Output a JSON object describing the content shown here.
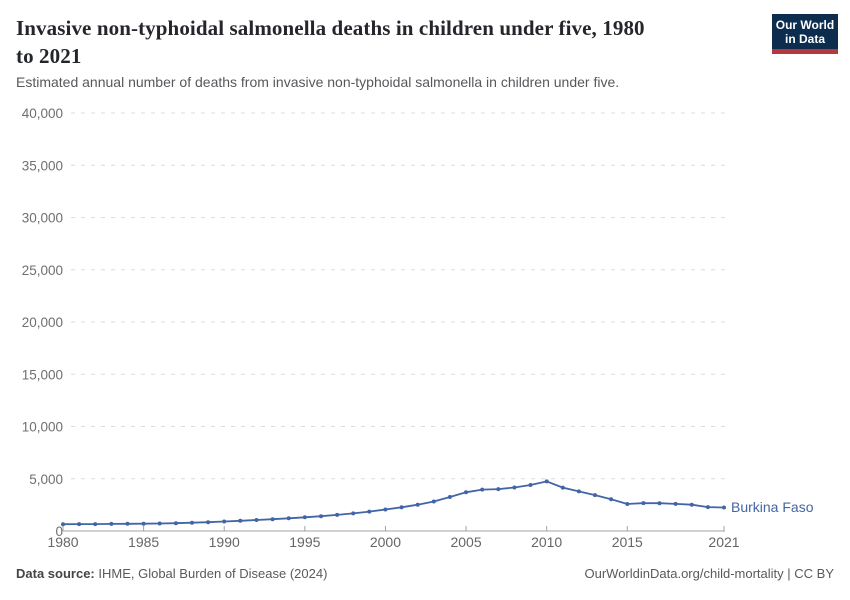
{
  "header": {
    "title": "Invasive non-typhoidal salmonella deaths in children under five, 1980 to 2021",
    "title_line1": "Invasive non-typhoidal salmonella deaths in children under five, 1980",
    "title_line2": "to 2021",
    "subtitle": "Estimated annual number of deaths from invasive non-typhoidal salmonella in children under five."
  },
  "logo": {
    "line1": "Our World",
    "line2": "in Data",
    "bg_color": "#0c2d4e",
    "stripe_color": "#b5383f"
  },
  "chart_data": {
    "type": "line",
    "title": "Invasive non-typhoidal salmonella deaths in children under five, 1980 to 2021",
    "xlabel": "",
    "ylabel": "",
    "ylim": [
      0,
      40000
    ],
    "yticks": [
      0,
      5000,
      10000,
      15000,
      20000,
      25000,
      30000,
      35000,
      40000
    ],
    "ytick_interval": 5000,
    "xticks": [
      1980,
      1985,
      1990,
      1995,
      2000,
      2005,
      2010,
      2015,
      2021
    ],
    "grid": "dashed-horizontal",
    "legend_position": "series-end-label",
    "series": [
      {
        "name": "Burkina Faso",
        "color": "#4365a5",
        "x": [
          1980,
          1981,
          1982,
          1983,
          1984,
          1985,
          1986,
          1987,
          1988,
          1989,
          1990,
          1991,
          1992,
          1993,
          1994,
          1995,
          1996,
          1997,
          1998,
          1999,
          2000,
          2001,
          2002,
          2003,
          2004,
          2005,
          2006,
          2007,
          2008,
          2009,
          2010,
          2011,
          2012,
          2013,
          2014,
          2015,
          2016,
          2017,
          2018,
          2019,
          2020,
          2021
        ],
        "values": [
          650,
          660,
          665,
          675,
          685,
          700,
          720,
          750,
          790,
          845,
          905,
          975,
          1050,
          1130,
          1215,
          1310,
          1420,
          1540,
          1680,
          1860,
          2060,
          2270,
          2520,
          2820,
          3250,
          3700,
          3960,
          4010,
          4160,
          4400,
          4750,
          4150,
          3790,
          3440,
          3040,
          2580,
          2670,
          2665,
          2590,
          2520,
          2290,
          2250
        ]
      }
    ]
  },
  "footer": {
    "source_label": "Data source:",
    "source_text": "IHME, Global Burden of Disease (2024)",
    "right_text": "OurWorldinData.org/child-mortality | CC BY"
  },
  "colors": {
    "line": "#4365a5",
    "gridline": "#dcdcdc",
    "axis": "#a3a3a3",
    "tick_label": "#64666a",
    "title": "#24262b",
    "subtitle": "#56585c"
  }
}
